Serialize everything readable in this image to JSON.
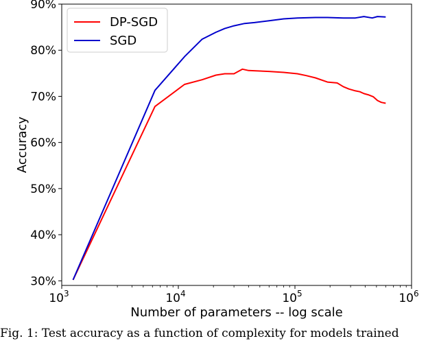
{
  "chart_data": {
    "type": "line",
    "title": "",
    "xlabel": "Number of parameters -- log scale",
    "ylabel": "Accuracy",
    "x_scale": "log",
    "xlim": [
      1000,
      1000000
    ],
    "ylim": [
      29,
      90
    ],
    "x_ticks": [
      {
        "value": 1000,
        "base": "10",
        "exp": "3"
      },
      {
        "value": 10000,
        "base": "10",
        "exp": "4"
      },
      {
        "value": 100000,
        "base": "10",
        "exp": "5"
      },
      {
        "value": 1000000,
        "base": "10",
        "exp": "6"
      }
    ],
    "y_ticks": [
      {
        "value": 30,
        "label": "30%"
      },
      {
        "value": 40,
        "label": "40%"
      },
      {
        "value": 50,
        "label": "50%"
      },
      {
        "value": 60,
        "label": "60%"
      },
      {
        "value": 70,
        "label": "70%"
      },
      {
        "value": 80,
        "label": "80%"
      },
      {
        "value": 90,
        "label": "90%"
      }
    ],
    "grid": false,
    "legend_position": "top-left",
    "series": [
      {
        "name": "DP-SGD",
        "color": "#ff0000",
        "points": [
          [
            1250,
            30.2
          ],
          [
            6300,
            67.8
          ],
          [
            11300,
            72.6
          ],
          [
            16000,
            73.6
          ],
          [
            21000,
            74.6
          ],
          [
            25000,
            74.9
          ],
          [
            30000,
            74.9
          ],
          [
            35500,
            75.9
          ],
          [
            40000,
            75.6
          ],
          [
            50000,
            75.5
          ],
          [
            60000,
            75.4
          ],
          [
            80000,
            75.2
          ],
          [
            105000,
            74.9
          ],
          [
            125000,
            74.5
          ],
          [
            150000,
            74.0
          ],
          [
            190000,
            73.1
          ],
          [
            230000,
            72.9
          ],
          [
            260000,
            72.1
          ],
          [
            290000,
            71.6
          ],
          [
            330000,
            71.2
          ],
          [
            360000,
            71.0
          ],
          [
            390000,
            70.6
          ],
          [
            430000,
            70.3
          ],
          [
            470000,
            69.9
          ],
          [
            510000,
            69.1
          ],
          [
            550000,
            68.7
          ],
          [
            600000,
            68.5
          ]
        ]
      },
      {
        "name": "SGD",
        "color": "#0000cc",
        "points": [
          [
            1250,
            30.2
          ],
          [
            6300,
            71.3
          ],
          [
            11300,
            78.6
          ],
          [
            16000,
            82.4
          ],
          [
            21000,
            83.9
          ],
          [
            25000,
            84.7
          ],
          [
            30000,
            85.3
          ],
          [
            37000,
            85.8
          ],
          [
            45000,
            86.0
          ],
          [
            60000,
            86.4
          ],
          [
            80000,
            86.8
          ],
          [
            105000,
            87.0
          ],
          [
            150000,
            87.1
          ],
          [
            190000,
            87.1
          ],
          [
            260000,
            87.0
          ],
          [
            330000,
            87.0
          ],
          [
            390000,
            87.3
          ],
          [
            460000,
            87.0
          ],
          [
            510000,
            87.3
          ],
          [
            600000,
            87.2
          ]
        ]
      }
    ]
  },
  "caption": "Fig. 1: Test accuracy as a function of complexity for models trained"
}
